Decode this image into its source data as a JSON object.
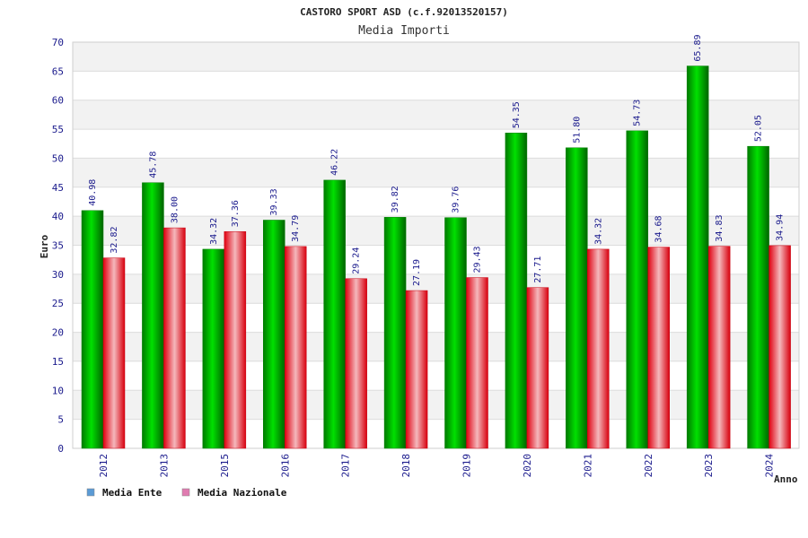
{
  "chart_data": {
    "type": "bar",
    "title": "CASTORO SPORT ASD (c.f.92013520157)",
    "subtitle": "Media Importi",
    "ylabel": "Euro",
    "xlabel": "Anno",
    "ylim": [
      0,
      70
    ],
    "ytick_step": 5,
    "categories": [
      "2012",
      "2013",
      "2015",
      "2016",
      "2017",
      "2018",
      "2019",
      "2020",
      "2021",
      "2022",
      "2023",
      "2024"
    ],
    "series": [
      {
        "name": "Media Ente",
        "values": [
          40.98,
          45.78,
          34.32,
          39.33,
          46.22,
          39.82,
          39.76,
          54.35,
          51.8,
          54.73,
          65.89,
          52.05
        ],
        "labels": [
          "40.98",
          "45.78",
          "34.32",
          "39.33",
          "46.22",
          "39.82",
          "39.76",
          "54.35",
          "51.80",
          "54.73",
          "65.89",
          "52.05"
        ],
        "color": "#00a000",
        "legend_color": "#5b9bd5"
      },
      {
        "name": "Media Nazionale",
        "values": [
          32.82,
          38.0,
          37.36,
          34.79,
          29.24,
          27.19,
          29.43,
          27.71,
          34.32,
          34.68,
          34.83,
          34.94
        ],
        "labels": [
          "32.82",
          "38.00",
          "37.36",
          "34.79",
          "29.24",
          "27.19",
          "29.43",
          "27.71",
          "34.32",
          "34.68",
          "34.83",
          "34.94"
        ],
        "color": "#e00010",
        "legend_color": "#e07bb0"
      }
    ],
    "grid": true,
    "legend_position": "bottom-left"
  }
}
